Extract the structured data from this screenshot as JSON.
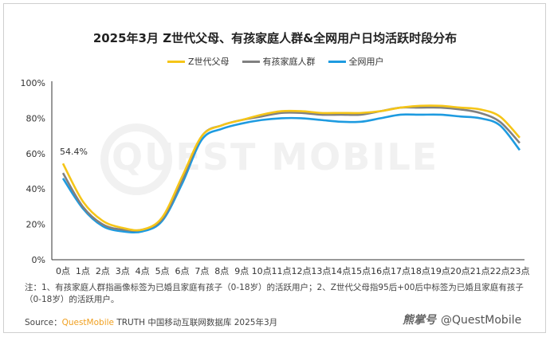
{
  "title": "2025年3月 Z世代父母、有孩家庭人群&全网用户日均活跃时段分布",
  "legend": [
    {
      "label": "Z世代父母",
      "color": "#F5C518"
    },
    {
      "label": "有孩家庭人群",
      "color": "#808080"
    },
    {
      "label": "全网用户",
      "color": "#1E9BE0"
    }
  ],
  "chart_data": {
    "type": "line",
    "title": "2025年3月 Z世代父母、有孩家庭人群&全网用户日均活跃时段分布",
    "xlabel": "",
    "ylabel": "",
    "x": [
      "0点",
      "1点",
      "2点",
      "3点",
      "4点",
      "5点",
      "6点",
      "7点",
      "8点",
      "9点",
      "10点",
      "11点",
      "12点",
      "13点",
      "14点",
      "15点",
      "16点",
      "17点",
      "18点",
      "19点",
      "20点",
      "21点",
      "22点",
      "23点"
    ],
    "ylim": [
      0,
      100
    ],
    "yticks": [
      "0%",
      "20%",
      "40%",
      "60%",
      "80%",
      "100%"
    ],
    "series": [
      {
        "name": "Z世代父母",
        "color": "#F5C518",
        "values": [
          54.4,
          33,
          22,
          18,
          17,
          24,
          47,
          70,
          76,
          79,
          82,
          84,
          84,
          83,
          83,
          83,
          84,
          86,
          87,
          87,
          86,
          85,
          81,
          69
        ]
      },
      {
        "name": "有孩家庭人群",
        "color": "#808080",
        "values": [
          49,
          30,
          20,
          17,
          17,
          23,
          45,
          70,
          76,
          79,
          81,
          83,
          83,
          82,
          82,
          82,
          84,
          86,
          86,
          86,
          85,
          83,
          78,
          66
        ]
      },
      {
        "name": "全网用户",
        "color": "#1E9BE0",
        "values": [
          46,
          29,
          19,
          16,
          16,
          22,
          43,
          68,
          74,
          77,
          79,
          80,
          80,
          79,
          78,
          78,
          80,
          82,
          82,
          82,
          81,
          80,
          76,
          62
        ]
      }
    ],
    "annotations": [
      {
        "text": "54.4%",
        "series": "Z世代父母",
        "x": "0点"
      }
    ],
    "grid": false,
    "legend_position": "top"
  },
  "note": "注：1、有孩家庭人群指画像标签为已婚且家庭有孩子（0-18岁）的活跃用户；2、Z世代父母指95后+00后中标签为已婚且家庭有孩子（0-18岁）的活跃用户。",
  "source": {
    "prefix": "Source：",
    "brand": "QuestMobile",
    "rest": " TRUTH 中国移动互联网数据库 2025年3月"
  },
  "watermark": {
    "glyph": "熊掌号",
    "handle": "@QuestMobile"
  },
  "bg_watermark": "QUEST MOBILE"
}
